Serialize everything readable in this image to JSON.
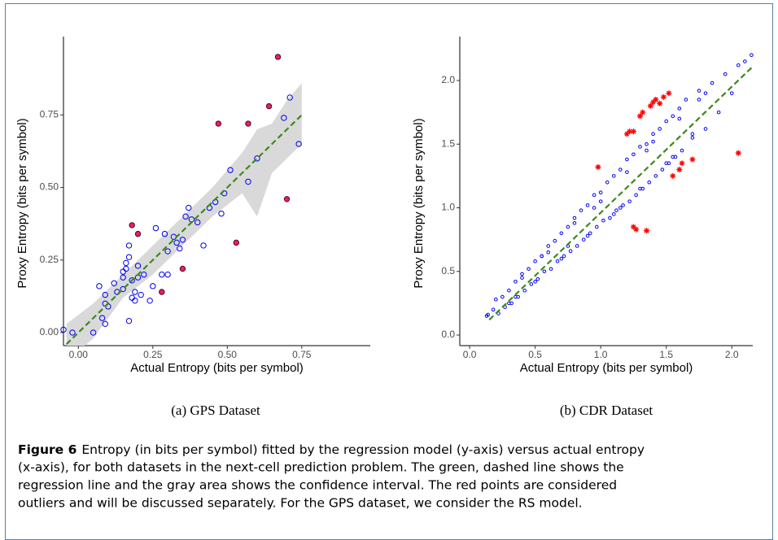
{
  "chart_data": [
    {
      "type": "scatter",
      "caption": "(a) GPS Dataset",
      "x_label": "Actual Entropy (bits per symbol)",
      "y_label": "Proxy Entropy (bits per symbol)",
      "xlim": [
        -0.05,
        0.98
      ],
      "ylim": [
        -0.045,
        1.02
      ],
      "xticks": [
        {
          "value": 0,
          "label": "0.00"
        },
        0.25,
        {
          "value": 0.5,
          "label": "0.50"
        },
        0.75
      ],
      "yticks": [
        {
          "value": 0,
          "label": "0.00"
        },
        0.25,
        {
          "value": 0.5,
          "label": "0.50"
        },
        0.75
      ],
      "band": {
        "color": "#d9d9d9",
        "x": [
          -0.04,
          0.05,
          0.15,
          0.25,
          0.35,
          0.45,
          0.55,
          0.6,
          0.65,
          0.7,
          0.75
        ],
        "lower": [
          -0.1,
          -0.02,
          0.12,
          0.2,
          0.3,
          0.4,
          0.48,
          0.4,
          0.55,
          0.6,
          0.65
        ],
        "upper": [
          0.03,
          0.1,
          0.2,
          0.3,
          0.4,
          0.5,
          0.62,
          0.7,
          0.72,
          0.8,
          0.86
        ]
      },
      "regression_line": {
        "color": "#3a8a1e",
        "x": [
          -0.04,
          0.75
        ],
        "y": [
          -0.04,
          0.75
        ]
      },
      "series": [
        {
          "color": "#0000ee",
          "marker": "circle-open",
          "x": [
            -0.05,
            -0.02,
            0.05,
            0.08,
            0.09,
            0.1,
            0.09,
            0.07,
            0.12,
            0.13,
            0.15,
            0.15,
            0.15,
            0.16,
            0.16,
            0.17,
            0.17,
            0.18,
            0.18,
            0.19,
            0.19,
            0.2,
            0.2,
            0.21,
            0.22,
            0.24,
            0.25,
            0.26,
            0.28,
            0.29,
            0.3,
            0.3,
            0.32,
            0.33,
            0.34,
            0.35,
            0.36,
            0.37,
            0.38,
            0.4,
            0.42,
            0.44,
            0.46,
            0.48,
            0.49,
            0.51,
            0.57,
            0.6,
            0.69,
            0.71,
            0.74,
            0.17,
            0.09
          ],
          "values": [
            0.01,
            0.0,
            0.0,
            0.05,
            0.03,
            0.09,
            0.13,
            0.16,
            0.17,
            0.14,
            0.15,
            0.19,
            0.21,
            0.22,
            0.24,
            0.26,
            0.3,
            0.18,
            0.12,
            0.11,
            0.14,
            0.23,
            0.19,
            0.13,
            0.2,
            0.11,
            0.16,
            0.36,
            0.2,
            0.34,
            0.2,
            0.28,
            0.33,
            0.31,
            0.29,
            0.32,
            0.4,
            0.43,
            0.39,
            0.38,
            0.3,
            0.43,
            0.45,
            0.41,
            0.48,
            0.56,
            0.52,
            0.6,
            0.74,
            0.81,
            0.65,
            0.04,
            0.1
          ]
        },
        {
          "color": "#e0245e",
          "marker": "circle-filled",
          "x": [
            0.18,
            0.2,
            0.28,
            0.35,
            0.47,
            0.53,
            0.57,
            0.64,
            0.67,
            0.7
          ],
          "values": [
            0.37,
            0.34,
            0.14,
            0.22,
            0.72,
            0.31,
            0.72,
            0.78,
            0.95,
            0.46
          ]
        }
      ]
    },
    {
      "type": "scatter",
      "caption": "(b) CDR Dataset",
      "x_label": "Actual Entropy (bits per symbol)",
      "y_label": "Proxy Entropy (bits per symbol)",
      "xlim": [
        -0.075,
        2.16
      ],
      "ylim": [
        -0.083,
        2.345
      ],
      "xticks": [
        {
          "value": 0,
          "label": "0.0"
        },
        0.5,
        {
          "value": 1,
          "label": "1.0"
        },
        1.5,
        {
          "value": 2,
          "label": "2.0"
        }
      ],
      "yticks": [
        {
          "value": 0,
          "label": "0.0"
        },
        0.5,
        {
          "value": 1,
          "label": "1.0"
        },
        1.5,
        {
          "value": 2,
          "label": "2.0"
        }
      ],
      "regression_line": {
        "color": "#3a8a1e",
        "x": [
          0.15,
          2.15
        ],
        "y": [
          0.12,
          2.1
        ]
      },
      "series": [
        {
          "color": "#0000ee",
          "marker": "circle-open",
          "x": [
            0.13,
            0.14,
            0.18,
            0.2,
            0.22,
            0.25,
            0.27,
            0.3,
            0.32,
            0.35,
            0.37,
            0.4,
            0.42,
            0.45,
            0.47,
            0.5,
            0.52,
            0.55,
            0.57,
            0.6,
            0.62,
            0.65,
            0.67,
            0.7,
            0.72,
            0.75,
            0.77,
            0.8,
            0.82,
            0.85,
            0.87,
            0.9,
            0.92,
            0.95,
            0.97,
            1.0,
            1.02,
            1.05,
            1.07,
            1.1,
            1.12,
            1.15,
            1.17,
            1.2,
            1.22,
            1.25,
            1.27,
            1.3,
            1.32,
            1.35,
            1.37,
            1.4,
            1.42,
            1.45,
            1.47,
            1.5,
            1.52,
            1.55,
            1.57,
            1.6,
            1.62,
            1.65,
            1.7,
            1.75,
            1.8,
            1.85,
            1.9,
            1.95,
            2.0,
            2.05,
            2.1,
            2.15,
            0.3,
            0.4,
            0.5,
            0.6,
            0.7,
            0.8,
            0.9,
            1.0,
            1.1,
            1.2,
            1.3,
            1.4,
            1.5,
            1.6,
            1.7,
            1.8,
            0.35,
            0.55,
            0.75,
            0.95,
            1.15,
            1.35,
            1.55,
            1.75
          ],
          "values": [
            0.15,
            0.16,
            0.2,
            0.28,
            0.17,
            0.3,
            0.22,
            0.35,
            0.25,
            0.42,
            0.3,
            0.48,
            0.35,
            0.52,
            0.4,
            0.58,
            0.44,
            0.62,
            0.5,
            0.7,
            0.52,
            0.74,
            0.58,
            0.8,
            0.62,
            0.85,
            0.66,
            0.92,
            0.7,
            0.98,
            0.75,
            1.02,
            0.8,
            1.1,
            0.85,
            1.12,
            0.9,
            1.2,
            0.92,
            1.25,
            0.98,
            1.3,
            1.02,
            1.38,
            1.05,
            1.42,
            1.1,
            1.48,
            1.15,
            1.5,
            1.2,
            1.58,
            1.25,
            1.62,
            1.3,
            1.68,
            1.35,
            1.72,
            1.4,
            1.78,
            1.45,
            1.85,
            1.55,
            1.92,
            1.62,
            1.98,
            1.75,
            2.05,
            1.9,
            2.12,
            2.15,
            2.2,
            0.25,
            0.45,
            0.42,
            0.65,
            0.6,
            0.88,
            0.78,
            1.05,
            0.95,
            1.28,
            1.15,
            1.52,
            1.35,
            1.7,
            1.58,
            1.9,
            0.3,
            0.62,
            0.7,
            1.0,
            1.0,
            1.45,
            1.4,
            1.85
          ]
        },
        {
          "color": "#ff0000",
          "marker": "star",
          "x": [
            0.98,
            1.2,
            1.22,
            1.25,
            1.3,
            1.32,
            1.38,
            1.4,
            1.42,
            1.45,
            1.48,
            1.52,
            1.55,
            1.6,
            1.62,
            1.7,
            1.25,
            1.27,
            1.35,
            2.05
          ],
          "values": [
            1.32,
            1.58,
            1.6,
            1.6,
            1.72,
            1.75,
            1.8,
            1.83,
            1.85,
            1.82,
            1.87,
            1.9,
            1.25,
            1.3,
            1.35,
            1.38,
            0.85,
            0.83,
            0.82,
            1.43
          ]
        }
      ]
    }
  ],
  "figure": {
    "label": "Figure 6",
    "lines": [
      "Entropy (in bits per symbol) fitted by the regression model (y-axis) versus actual entropy",
      "(x-axis), for both datasets in the next-cell prediction problem. The green, dashed line shows the",
      "regression line and the gray area shows the confidence interval. The red points are considered",
      "outliers and will be discussed separately. For the GPS dataset, we consider the RS model."
    ]
  }
}
